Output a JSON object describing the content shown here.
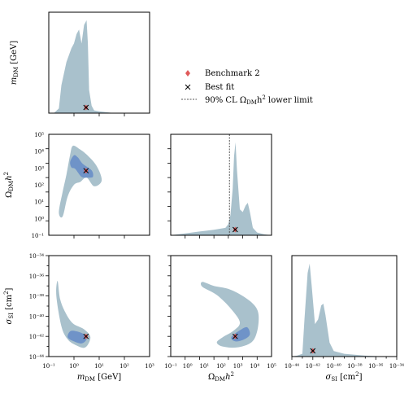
{
  "chart_data": {
    "type": "corner",
    "colors": {
      "outer": "#a9c1cc",
      "inner": "#6f93c8",
      "best_fit_mark": "#000000",
      "benchmark_mark": "#e05a5a",
      "limit_line": "#555555"
    },
    "legend": {
      "placement": "top-right",
      "entries": [
        {
          "label": "Benchmark 2",
          "marker": "diamond"
        },
        {
          "label": "Best fit",
          "marker": "x"
        },
        {
          "label": "90% CL ΩDMh² lower limit",
          "marker": "dashed-line"
        }
      ]
    },
    "axes": {
      "m_dm": {
        "label": "m_DM [GeV]",
        "scale": "log",
        "range": [
          0.1,
          1000
        ],
        "tick_labels": [
          "10⁻¹",
          "10⁰",
          "10¹",
          "10²",
          "10³"
        ]
      },
      "omega": {
        "label": "Ω_DM h²",
        "scale": "log",
        "range": [
          0.1,
          1000000
        ],
        "tick_labels": [
          "10⁻¹",
          "10⁰",
          "10¹",
          "10²",
          "10³",
          "10⁴",
          "10⁵"
        ]
      },
      "sigma": {
        "label": "σ_SI [cm²]",
        "scale": "log",
        "range": [
          1e-44,
          1e-34
        ],
        "tick_labels": [
          "10⁻⁴⁴",
          "10⁻⁴²",
          "10⁻⁴⁰",
          "10⁻³⁸",
          "10⁻³⁶",
          "10⁻³⁴"
        ]
      }
    },
    "diag_labels": {
      "m_dm_ylabel": "m_DM [GeV]"
    },
    "best_fit": {
      "m_dm": 3.0,
      "omega": 3000,
      "sigma": 1e-42
    },
    "omega_lower_limit": 1200,
    "marginals": {
      "m_dm": {
        "x_log": [
          -0.8,
          -0.6,
          -0.5,
          -0.3,
          -0.1,
          0.0,
          0.1,
          0.2,
          0.3,
          0.4,
          0.5,
          0.55,
          0.6,
          0.7,
          0.8,
          1.0,
          1.3,
          1.6
        ],
        "density": [
          0,
          0.05,
          0.3,
          0.55,
          0.7,
          0.75,
          0.85,
          0.9,
          0.75,
          0.95,
          1.0,
          0.75,
          0.25,
          0.08,
          0.03,
          0.02,
          0.01,
          0
        ]
      },
      "omega": {
        "x_log": [
          -1,
          0,
          1,
          2,
          2.8,
          3.0,
          3.15,
          3.3,
          3.4,
          3.5,
          3.6,
          3.8,
          4.0,
          4.2,
          4.35,
          4.5,
          4.7,
          5.0,
          5.5,
          6
        ],
        "density": [
          0,
          0.02,
          0.04,
          0.06,
          0.08,
          0.12,
          0.22,
          0.5,
          0.85,
          1.0,
          0.7,
          0.28,
          0.25,
          0.32,
          0.35,
          0.25,
          0.08,
          0.03,
          0.01,
          0
        ]
      },
      "sigma": {
        "x_log": [
          -44,
          -43.5,
          -43,
          -42.8,
          -42.5,
          -42.3,
          -42.1,
          -41.8,
          -41.5,
          -41.2,
          -41,
          -40.8,
          -40.4,
          -40,
          -39,
          -38,
          -37,
          -36,
          -35
        ],
        "density": [
          0,
          0.01,
          0.03,
          0.4,
          0.9,
          1.0,
          0.75,
          0.35,
          0.4,
          0.55,
          0.57,
          0.45,
          0.15,
          0.06,
          0.03,
          0.02,
          0.01,
          0.005,
          0
        ]
      }
    },
    "joints": {
      "omega_vs_m_dm": {
        "outer": [
          [
            -0.6,
            0.6
          ],
          [
            -0.45,
            2.0
          ],
          [
            -0.3,
            3.2
          ],
          [
            -0.15,
            4.6
          ],
          [
            -0.05,
            5.2
          ],
          [
            0.2,
            5.0
          ],
          [
            0.5,
            4.6
          ],
          [
            0.9,
            3.8
          ],
          [
            1.1,
            2.8
          ],
          [
            0.8,
            2.4
          ],
          [
            0.5,
            3.0
          ],
          [
            0.25,
            2.7
          ],
          [
            0.0,
            2.5
          ],
          [
            -0.25,
            1.7
          ],
          [
            -0.45,
            0.3
          ]
        ],
        "inner": [
          [
            -0.15,
            4.1
          ],
          [
            0.0,
            4.55
          ],
          [
            0.15,
            4.4
          ],
          [
            0.35,
            3.95
          ],
          [
            0.7,
            3.5
          ],
          [
            0.75,
            3.05
          ],
          [
            0.55,
            3.0
          ],
          [
            0.3,
            3.05
          ],
          [
            0.05,
            3.6
          ],
          [
            -0.1,
            3.7
          ]
        ]
      },
      "sigma_vs_m_dm": {
        "outer": [
          [
            -0.65,
            -36.5
          ],
          [
            -0.55,
            -38.3
          ],
          [
            -0.35,
            -39.6
          ],
          [
            -0.05,
            -40.7
          ],
          [
            0.4,
            -41.3
          ],
          [
            0.65,
            -42.1
          ],
          [
            0.45,
            -43.1
          ],
          [
            0.1,
            -42.9
          ],
          [
            -0.25,
            -42.3
          ],
          [
            -0.5,
            -41.0
          ],
          [
            -0.7,
            -38.0
          ]
        ],
        "inner": [
          [
            -0.15,
            -41.5
          ],
          [
            0.1,
            -41.5
          ],
          [
            0.4,
            -41.8
          ],
          [
            0.5,
            -42.3
          ],
          [
            0.3,
            -42.7
          ],
          [
            0.0,
            -42.5
          ],
          [
            -0.25,
            -42.1
          ]
        ]
      },
      "sigma_vs_omega": {
        "outer": [
          [
            1.2,
            -36.6
          ],
          [
            2.0,
            -37.0
          ],
          [
            3.0,
            -37.3
          ],
          [
            4.0,
            -38.0
          ],
          [
            4.8,
            -38.9
          ],
          [
            5.1,
            -39.9
          ],
          [
            5.0,
            -41.5
          ],
          [
            4.6,
            -42.6
          ],
          [
            3.6,
            -43.1
          ],
          [
            2.6,
            -43.0
          ],
          [
            2.2,
            -42.6
          ],
          [
            2.6,
            -42.1
          ],
          [
            3.4,
            -41.4
          ],
          [
            3.8,
            -40.6
          ],
          [
            3.2,
            -39.3
          ],
          [
            2.2,
            -37.9
          ],
          [
            1.2,
            -37.1
          ]
        ],
        "inner": [
          [
            3.2,
            -42.1
          ],
          [
            3.8,
            -41.4
          ],
          [
            4.3,
            -41.1
          ],
          [
            4.5,
            -41.8
          ],
          [
            4.1,
            -42.3
          ],
          [
            3.5,
            -42.5
          ]
        ]
      }
    }
  }
}
